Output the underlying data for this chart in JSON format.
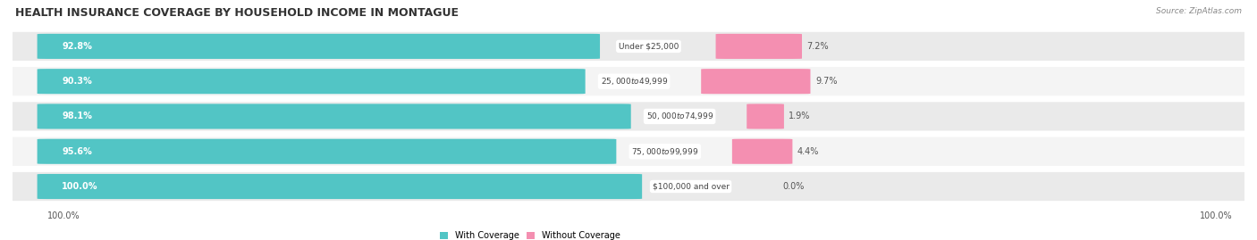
{
  "title": "HEALTH INSURANCE COVERAGE BY HOUSEHOLD INCOME IN MONTAGUE",
  "source": "Source: ZipAtlas.com",
  "categories": [
    "Under $25,000",
    "$25,000 to $49,999",
    "$50,000 to $74,999",
    "$75,000 to $99,999",
    "$100,000 and over"
  ],
  "with_coverage": [
    92.8,
    90.3,
    98.1,
    95.6,
    100.0
  ],
  "without_coverage": [
    7.2,
    9.7,
    1.9,
    4.4,
    0.0
  ],
  "color_with": "#52C5C5",
  "color_without": "#F48FB1",
  "row_bg_colors": [
    "#EAEAEA",
    "#F4F4F4"
  ],
  "title_fontsize": 9,
  "label_fontsize": 7,
  "source_fontsize": 6.5,
  "tick_fontsize": 7,
  "fig_bg": "#FFFFFF",
  "legend_with": "With Coverage",
  "legend_without": "Without Coverage",
  "bar_total_scale": 0.52,
  "pink_scale": 0.07
}
